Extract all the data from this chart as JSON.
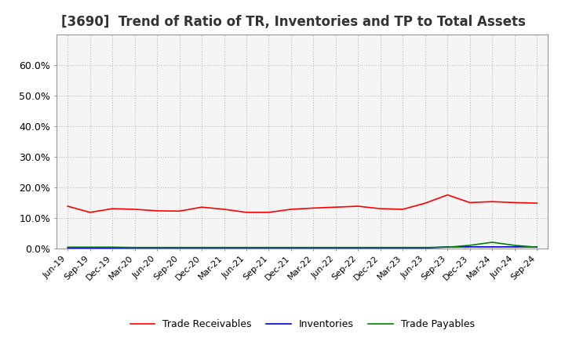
{
  "title": "[3690]  Trend of Ratio of TR, Inventories and TP to Total Assets",
  "title_fontsize": 12,
  "background_color": "#ffffff",
  "plot_bg_color": "#f5f5f5",
  "grid_color": "#bbbbbb",
  "x_labels": [
    "Jun-19",
    "Sep-19",
    "Dec-19",
    "Mar-20",
    "Jun-20",
    "Sep-20",
    "Dec-20",
    "Mar-21",
    "Jun-21",
    "Sep-21",
    "Dec-21",
    "Mar-22",
    "Jun-22",
    "Sep-22",
    "Dec-22",
    "Mar-23",
    "Jun-23",
    "Sep-23",
    "Dec-23",
    "Mar-24",
    "Jun-24",
    "Sep-24"
  ],
  "trade_receivables": [
    0.138,
    0.118,
    0.13,
    0.128,
    0.123,
    0.122,
    0.135,
    0.128,
    0.118,
    0.118,
    0.128,
    0.132,
    0.135,
    0.138,
    0.13,
    0.128,
    0.148,
    0.175,
    0.15,
    0.153,
    0.15,
    0.148
  ],
  "inventories": [
    0.001,
    0.001,
    0.001,
    0.001,
    0.001,
    0.001,
    0.001,
    0.001,
    0.001,
    0.001,
    0.001,
    0.001,
    0.001,
    0.001,
    0.001,
    0.001,
    0.001,
    0.005,
    0.005,
    0.005,
    0.005,
    0.005
  ],
  "trade_payables": [
    0.004,
    0.004,
    0.004,
    0.003,
    0.003,
    0.003,
    0.003,
    0.003,
    0.003,
    0.003,
    0.003,
    0.003,
    0.003,
    0.003,
    0.003,
    0.003,
    0.003,
    0.004,
    0.01,
    0.02,
    0.01,
    0.004
  ],
  "tr_color": "#ff0000",
  "inv_color": "#0000cc",
  "tp_color": "#008000",
  "ylim": [
    0.0,
    0.7
  ],
  "yticks": [
    0.0,
    0.1,
    0.2,
    0.3,
    0.4,
    0.5,
    0.6
  ],
  "ytick_labels": [
    "0.0%",
    "10.0%",
    "20.0%",
    "30.0%",
    "40.0%",
    "50.0%",
    "60.0%"
  ],
  "legend_labels": [
    "Trade Receivables",
    "Inventories",
    "Trade Payables"
  ]
}
